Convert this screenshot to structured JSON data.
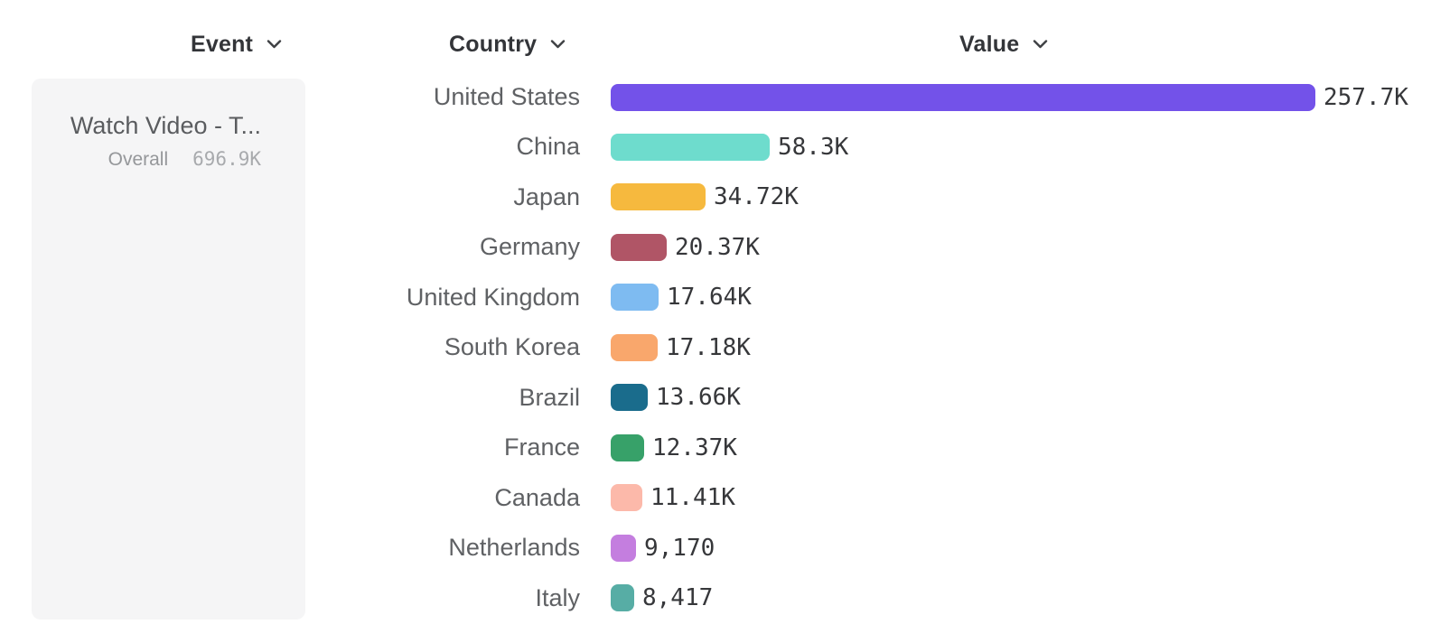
{
  "headers": [
    {
      "label": "Event"
    },
    {
      "label": "Country"
    },
    {
      "label": "Value"
    }
  ],
  "event_panel": {
    "title": "Watch Video - T...",
    "overall_label": "Overall",
    "overall_value": "696.9K"
  },
  "chart_data": {
    "type": "bar",
    "orientation": "horizontal",
    "title": "",
    "xlabel": "Value",
    "ylabel": "Country",
    "xlim": [
      0,
      260000
    ],
    "rows": [
      {
        "country": "United States",
        "value": 257700,
        "value_label": "257.7K",
        "color": "#7352E9"
      },
      {
        "country": "China",
        "value": 58300,
        "value_label": "58.3K",
        "color": "#6EDCCD"
      },
      {
        "country": "Japan",
        "value": 34720,
        "value_label": "34.72K",
        "color": "#F6B93E"
      },
      {
        "country": "Germany",
        "value": 20370,
        "value_label": "20.37K",
        "color": "#B05566"
      },
      {
        "country": "United Kingdom",
        "value": 17640,
        "value_label": "17.64K",
        "color": "#7EBBF1"
      },
      {
        "country": "South Korea",
        "value": 17180,
        "value_label": "17.18K",
        "color": "#F9A76C"
      },
      {
        "country": "Brazil",
        "value": 13660,
        "value_label": "13.66K",
        "color": "#1A6C8C"
      },
      {
        "country": "France",
        "value": 12370,
        "value_label": "12.37K",
        "color": "#37A169"
      },
      {
        "country": "Canada",
        "value": 11410,
        "value_label": "11.41K",
        "color": "#FCB9AA"
      },
      {
        "country": "Netherlands",
        "value": 9170,
        "value_label": "9,170",
        "color": "#C47EDF"
      },
      {
        "country": "Italy",
        "value": 8417,
        "value_label": "8,417",
        "color": "#57ADA5"
      }
    ]
  }
}
